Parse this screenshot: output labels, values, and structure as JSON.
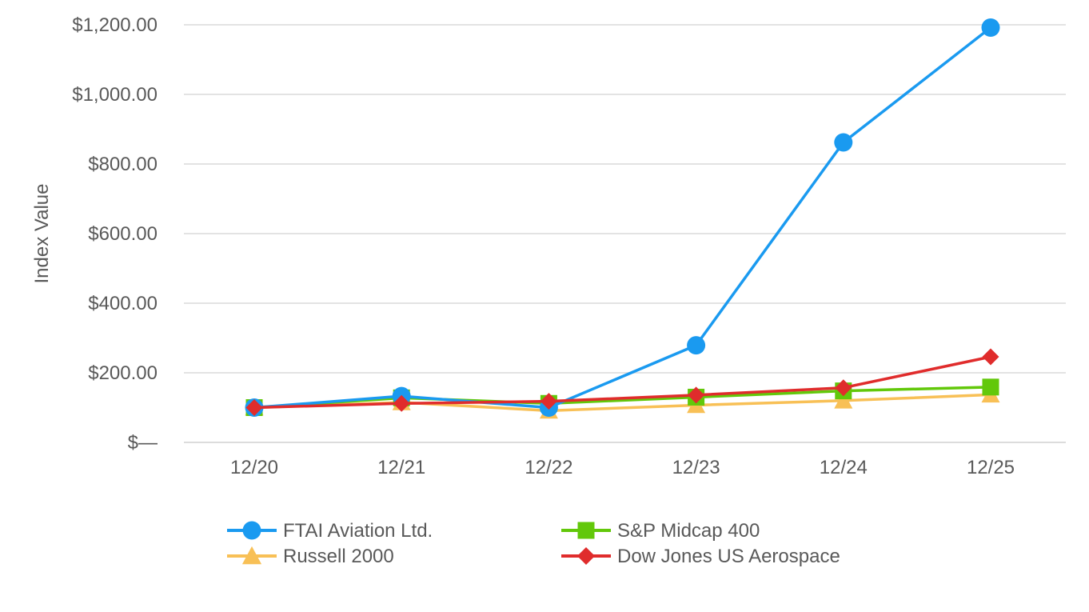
{
  "chart_data": {
    "type": "line",
    "title": "",
    "xlabel": "",
    "ylabel": "Index Value",
    "categories": [
      "12/20",
      "12/21",
      "12/22",
      "12/23",
      "12/24",
      "12/25"
    ],
    "ylim": [
      0,
      1200
    ],
    "yticks": [
      {
        "value": 0,
        "label": "$—"
      },
      {
        "value": 200,
        "label": "$200.00"
      },
      {
        "value": 400,
        "label": "$400.00"
      },
      {
        "value": 600,
        "label": "$600.00"
      },
      {
        "value": 800,
        "label": "$800.00"
      },
      {
        "value": 1000,
        "label": "$1,000.00"
      },
      {
        "value": 1200,
        "label": "$1,200.00"
      }
    ],
    "grid": true,
    "legend_position": "bottom",
    "series": [
      {
        "name": "FTAI Aviation Ltd.",
        "color": "#1a9af0",
        "marker": "circle",
        "values": [
          100,
          133,
          100,
          279,
          862,
          1192
        ]
      },
      {
        "name": "S&P Midcap 400",
        "color": "#62c80a",
        "marker": "square",
        "values": [
          100,
          128,
          112,
          130,
          148,
          159
        ]
      },
      {
        "name": "Russell 2000",
        "color": "#f8c056",
        "marker": "triangle",
        "values": [
          100,
          115,
          91,
          107,
          120,
          137
        ]
      },
      {
        "name": "Dow Jones US Aerospace",
        "color": "#e02c2c",
        "marker": "diamond",
        "values": [
          100,
          112,
          118,
          136,
          157,
          246
        ]
      }
    ],
    "legend_order": [
      0,
      1,
      2,
      3
    ]
  }
}
